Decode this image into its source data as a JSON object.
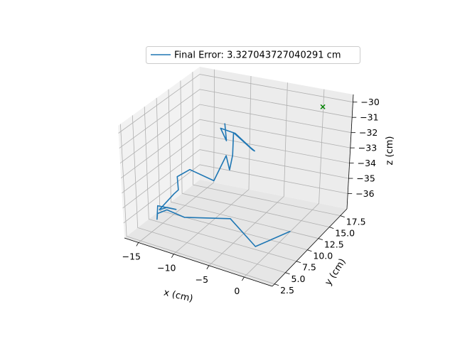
{
  "chart_data": {
    "type": "line3d",
    "xlabel": "x (cm)",
    "ylabel": "y (cm)",
    "zlabel": "z (cm)",
    "xlim": [
      -17,
      4
    ],
    "ylim": [
      2,
      19
    ],
    "zlim": [
      -37,
      -29.5
    ],
    "x_ticks": [
      -15,
      -10,
      -5,
      0
    ],
    "y_ticks": [
      2.5,
      5.0,
      7.5,
      10.0,
      12.5,
      15.0,
      17.5
    ],
    "z_ticks": [
      -30,
      -31,
      -32,
      -33,
      -34,
      -35,
      -36
    ],
    "x_tick_labels": [
      "−15",
      "−10",
      "−5",
      "0"
    ],
    "y_tick_labels": [
      "2.5",
      "5.0",
      "7.5",
      "10.0",
      "12.5",
      "15.0",
      "17.5"
    ],
    "z_tick_labels": [
      "−30",
      "−31",
      "−32",
      "−33",
      "−34",
      "−35",
      "−36"
    ],
    "grid": true,
    "legend_position": "top-center",
    "series": [
      {
        "name": "Final Error: 3.327043727040291 cm",
        "color": "#1f77b4",
        "points": [
          [
            -10.7,
            14.6,
            -31.6
          ],
          [
            -9.7,
            13.4,
            -32.35
          ],
          [
            -10.9,
            14.0,
            -31.8
          ],
          [
            -8.8,
            13.9,
            -31.9
          ],
          [
            -6.9,
            14.2,
            -32.7
          ],
          [
            -6.3,
            14.2,
            -32.87
          ],
          [
            -6.6,
            14.2,
            -32.82
          ],
          [
            -9.3,
            14.3,
            -32.0
          ],
          [
            -8.9,
            13.5,
            -33.25
          ],
          [
            -9.0,
            13.0,
            -34.1
          ],
          [
            -9.8,
            13.5,
            -33.37
          ],
          [
            -10.5,
            11.9,
            -34.7
          ],
          [
            -12.7,
            10.1,
            -33.78
          ],
          [
            -14.8,
            10.6,
            -34.62
          ],
          [
            -13.9,
            9.4,
            -35.1
          ],
          [
            -14.2,
            8.9,
            -35.28
          ],
          [
            -15.3,
            7.3,
            -36.1
          ],
          [
            -14.4,
            7.6,
            -35.9
          ],
          [
            -13.2,
            7.7,
            -35.9
          ],
          [
            -15.4,
            7.1,
            -35.8
          ],
          [
            -15.1,
            6.4,
            -36.5
          ],
          [
            -15.2,
            6.7,
            -36.2
          ],
          [
            -14.3,
            7.4,
            -36.0
          ],
          [
            -12.3,
            8.1,
            -36.4
          ],
          [
            -6.6,
            9.4,
            -36.1
          ],
          [
            -2.7,
            8.9,
            -37.3
          ],
          [
            0.5,
            11.7,
            -36.7
          ]
        ]
      },
      {
        "name": "",
        "type": "scatter",
        "marker": "x",
        "color": "#008000",
        "points": [
          [
            0.6,
            17.9,
            -30.3
          ]
        ]
      }
    ]
  }
}
